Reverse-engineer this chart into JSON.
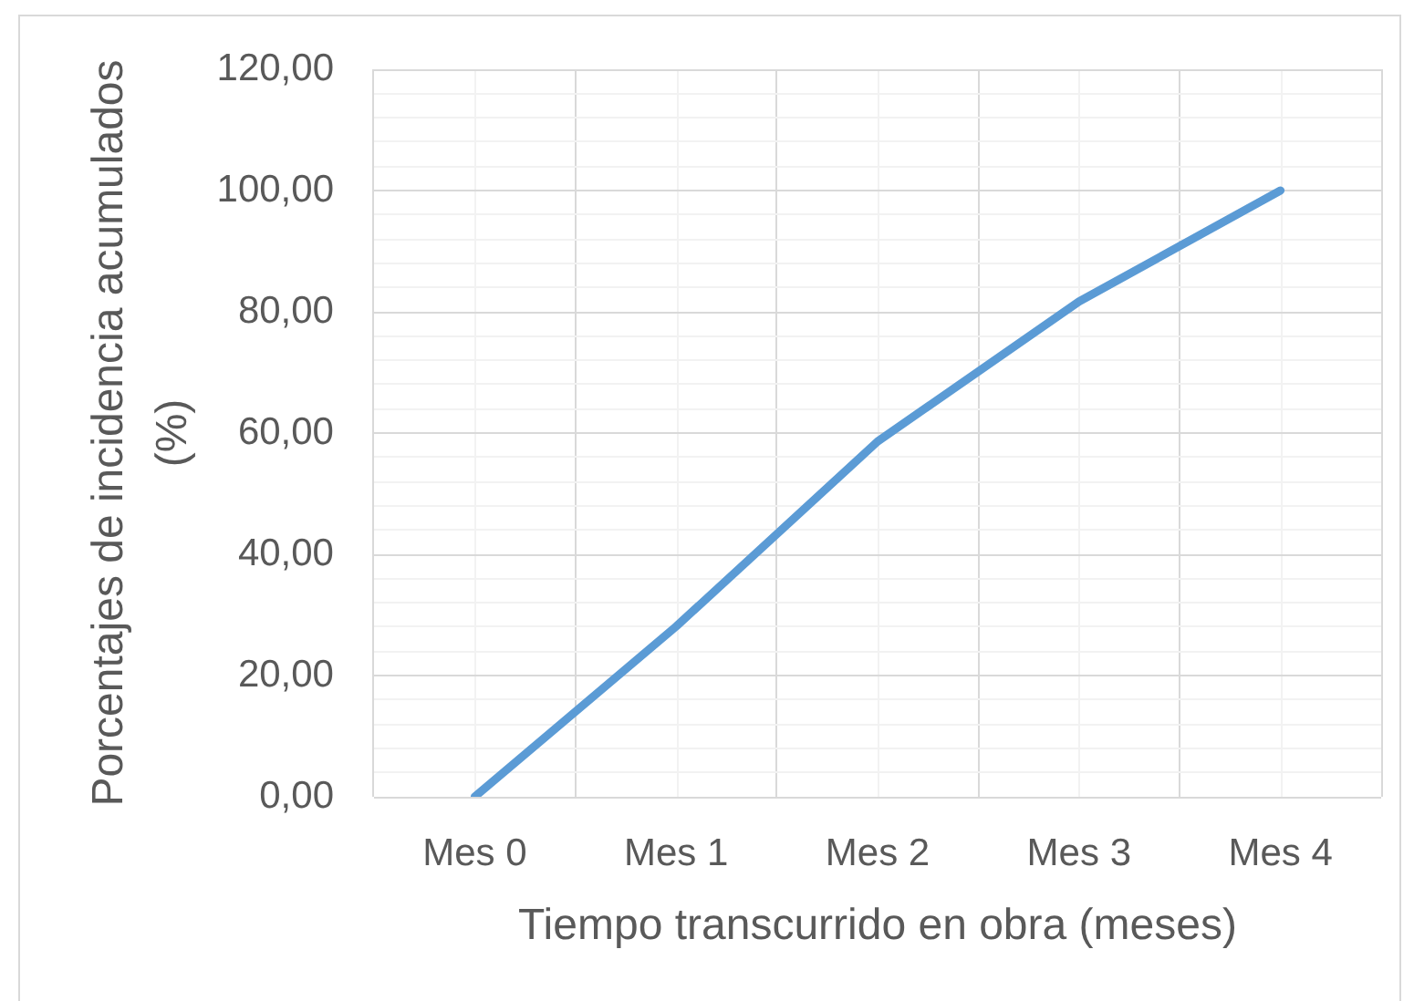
{
  "chart_data": {
    "type": "line",
    "xlabel": "Tiempo transcurrido en obra (meses)",
    "ylabel": "Porcentajes de incidencia acumulados (%)",
    "categories": [
      "Mes 0",
      "Mes 1",
      "Mes 2",
      "Mes 3",
      "Mes 4"
    ],
    "values": [
      0,
      28.1,
      58.6,
      81.7,
      100
    ],
    "color": "#5b9bd5",
    "marker": "none",
    "line_style": "solid",
    "ylim": [
      0,
      120
    ],
    "yticks": [
      {
        "value": 0,
        "label": "0,00"
      },
      {
        "value": 4,
        "label": null
      },
      {
        "value": 8,
        "label": null
      },
      {
        "value": 12,
        "label": null
      },
      {
        "value": 16,
        "label": null
      },
      {
        "value": 20,
        "label": "20,00"
      },
      {
        "value": 24,
        "label": null
      },
      {
        "value": 28,
        "label": null
      },
      {
        "value": 32,
        "label": null
      },
      {
        "value": 36,
        "label": null
      },
      {
        "value": 40,
        "label": "40,00"
      },
      {
        "value": 44,
        "label": null
      },
      {
        "value": 48,
        "label": null
      },
      {
        "value": 52,
        "label": null
      },
      {
        "value": 56,
        "label": null
      },
      {
        "value": 60,
        "label": "60,00"
      },
      {
        "value": 64,
        "label": null
      },
      {
        "value": 68,
        "label": null
      },
      {
        "value": 72,
        "label": null
      },
      {
        "value": 76,
        "label": null
      },
      {
        "value": 80,
        "label": "80,00"
      },
      {
        "value": 84,
        "label": null
      },
      {
        "value": 88,
        "label": null
      },
      {
        "value": 92,
        "label": null
      },
      {
        "value": 96,
        "label": null
      },
      {
        "value": 100,
        "label": "100,00"
      },
      {
        "value": 104,
        "label": null
      },
      {
        "value": 108,
        "label": null
      },
      {
        "value": 112,
        "label": null
      },
      {
        "value": 116,
        "label": null
      },
      {
        "value": 120,
        "label": "120,00"
      }
    ],
    "grid": true
  }
}
